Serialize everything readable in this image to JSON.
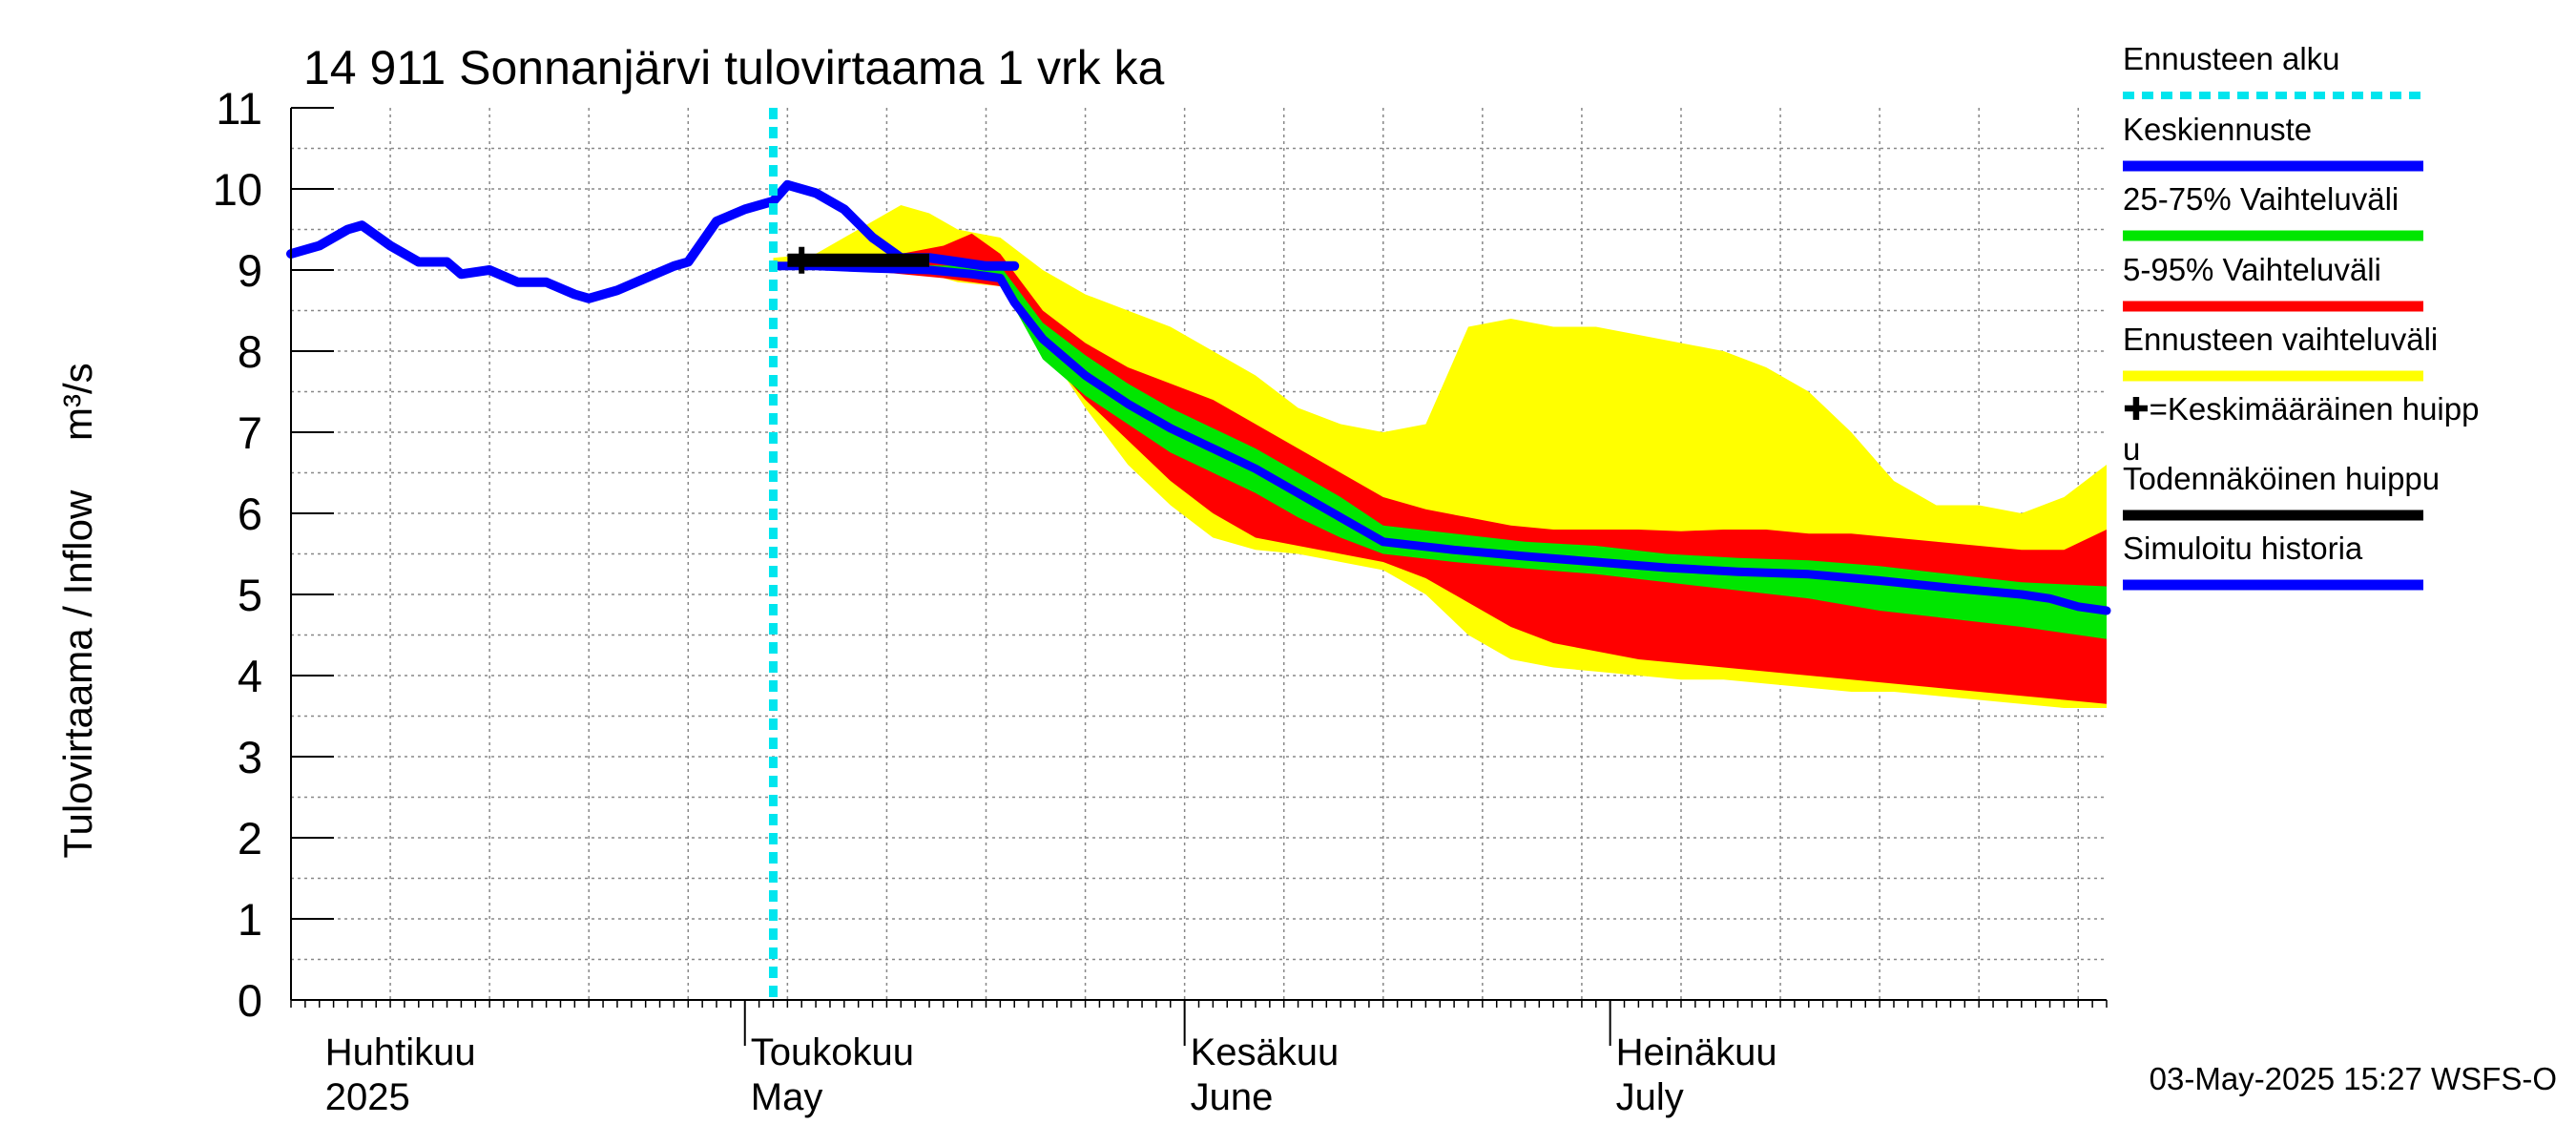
{
  "chart_data": {
    "type": "area",
    "title": "14 911 Sonnanjärvi tulovirtaama 1 vrk ka",
    "ylabel": "Tulovirtaama / Inflow",
    "yunit": "m³/s",
    "ylim": [
      0,
      11
    ],
    "yticks": [
      "0",
      "1",
      "2",
      "3",
      "4",
      "5",
      "6",
      "7",
      "8",
      "9",
      "10",
      "11"
    ],
    "xlim": [
      "2025-03-30",
      "2025-08-05"
    ],
    "grid": true,
    "forecast_start": "2025-05-03",
    "months": [
      {
        "fi": "Huhtikuu",
        "en": "2025",
        "date": "2025-04-01"
      },
      {
        "fi": "Toukokuu",
        "en": "May",
        "date": "2025-05-01"
      },
      {
        "fi": "Kesäkuu",
        "en": "June",
        "date": "2025-06-01"
      },
      {
        "fi": "Heinäkuu",
        "en": "July",
        "date": "2025-07-01"
      }
    ],
    "legend": [
      {
        "label": "Ennusteen alku",
        "color": "#00e5ee",
        "style": "dotted"
      },
      {
        "label": "Keskiennuste",
        "color": "#0000ff",
        "style": "solid"
      },
      {
        "label": "25-75% Vaihteluväli",
        "color": "#00e600",
        "style": "solid"
      },
      {
        "label": "5-95% Vaihteluväli",
        "color": "#ff0000",
        "style": "solid"
      },
      {
        "label": "Ennusteen vaihteluväli",
        "color": "#ffff00",
        "style": "solid"
      },
      {
        "label": "✚=Keskimääräinen huipp",
        "label2": "u",
        "color": "#000000",
        "style": "none"
      },
      {
        "label": "Todennäköinen huippu",
        "color": "#000000",
        "style": "solid"
      },
      {
        "label": "Simuloitu historia",
        "color": "#0000ff",
        "style": "solid"
      }
    ],
    "series": {
      "history": {
        "name": "Simuloitu historia",
        "color": "#0000ff",
        "points": [
          [
            "2025-03-30",
            9.2
          ],
          [
            "2025-04-01",
            9.3
          ],
          [
            "2025-04-03",
            9.5
          ],
          [
            "2025-04-04",
            9.55
          ],
          [
            "2025-04-06",
            9.3
          ],
          [
            "2025-04-08",
            9.1
          ],
          [
            "2025-04-10",
            9.1
          ],
          [
            "2025-04-11",
            8.95
          ],
          [
            "2025-04-13",
            9.0
          ],
          [
            "2025-04-15",
            8.85
          ],
          [
            "2025-04-17",
            8.85
          ],
          [
            "2025-04-19",
            8.7
          ],
          [
            "2025-04-20",
            8.65
          ],
          [
            "2025-04-22",
            8.75
          ],
          [
            "2025-04-24",
            8.9
          ],
          [
            "2025-04-26",
            9.05
          ],
          [
            "2025-04-27",
            9.1
          ],
          [
            "2025-04-29",
            9.6
          ],
          [
            "2025-05-01",
            9.75
          ],
          [
            "2025-05-03",
            9.85
          ],
          [
            "2025-05-04",
            10.05
          ],
          [
            "2025-05-06",
            9.95
          ],
          [
            "2025-05-08",
            9.75
          ],
          [
            "2025-05-10",
            9.4
          ],
          [
            "2025-05-12",
            9.15
          ],
          [
            "2025-05-14",
            9.15
          ],
          [
            "2025-05-16",
            9.1
          ],
          [
            "2025-05-18",
            9.05
          ],
          [
            "2025-05-20",
            9.05
          ]
        ]
      },
      "median": {
        "name": "Keskiennuste",
        "color": "#0000ff",
        "points": [
          [
            "2025-05-03",
            9.05
          ],
          [
            "2025-05-06",
            9.05
          ],
          [
            "2025-05-10",
            9.02
          ],
          [
            "2025-05-14",
            9.0
          ],
          [
            "2025-05-17",
            8.95
          ],
          [
            "2025-05-19",
            8.9
          ],
          [
            "2025-05-20",
            8.6
          ],
          [
            "2025-05-22",
            8.15
          ],
          [
            "2025-05-25",
            7.7
          ],
          [
            "2025-05-28",
            7.35
          ],
          [
            "2025-05-31",
            7.05
          ],
          [
            "2025-06-03",
            6.8
          ],
          [
            "2025-06-06",
            6.55
          ],
          [
            "2025-06-09",
            6.25
          ],
          [
            "2025-06-12",
            5.95
          ],
          [
            "2025-06-15",
            5.65
          ],
          [
            "2025-06-20",
            5.55
          ],
          [
            "2025-06-25",
            5.47
          ],
          [
            "2025-06-30",
            5.4
          ],
          [
            "2025-07-05",
            5.33
          ],
          [
            "2025-07-10",
            5.28
          ],
          [
            "2025-07-15",
            5.25
          ],
          [
            "2025-07-20",
            5.17
          ],
          [
            "2025-07-25",
            5.08
          ],
          [
            "2025-07-30",
            5.0
          ],
          [
            "2025-08-01",
            4.95
          ],
          [
            "2025-08-03",
            4.85
          ],
          [
            "2025-08-05",
            4.8
          ]
        ]
      },
      "peak": {
        "name": "Todennäköinen huippu",
        "color": "#000000",
        "points": [
          [
            "2025-05-04",
            9.12
          ],
          [
            "2025-05-14",
            9.12
          ]
        ]
      },
      "mean_peak_marker": {
        "date": "2025-05-05",
        "value": 9.12
      }
    },
    "bands": [
      {
        "name": "Ennusteen vaihteluväli",
        "color": "#ffff00",
        "x": [
          "2025-05-03",
          "2025-05-06",
          "2025-05-09",
          "2025-05-12",
          "2025-05-14",
          "2025-05-16",
          "2025-05-19",
          "2025-05-22",
          "2025-05-25",
          "2025-05-28",
          "2025-05-31",
          "2025-06-03",
          "2025-06-06",
          "2025-06-09",
          "2025-06-12",
          "2025-06-15",
          "2025-06-18",
          "2025-06-21",
          "2025-06-24",
          "2025-06-27",
          "2025-06-30",
          "2025-07-03",
          "2025-07-06",
          "2025-07-09",
          "2025-07-12",
          "2025-07-15",
          "2025-07-18",
          "2025-07-21",
          "2025-07-24",
          "2025-07-27",
          "2025-07-30",
          "2025-08-02",
          "2025-08-05"
        ],
        "upper": [
          9.15,
          9.2,
          9.5,
          9.8,
          9.7,
          9.5,
          9.4,
          9.0,
          8.7,
          8.5,
          8.3,
          8.0,
          7.7,
          7.3,
          7.1,
          7.0,
          7.1,
          8.3,
          8.4,
          8.3,
          8.3,
          8.2,
          8.1,
          8.0,
          7.8,
          7.5,
          7.0,
          6.4,
          6.1,
          6.1,
          6.0,
          6.2,
          6.6
        ],
        "lower": [
          9.0,
          9.0,
          9.0,
          9.0,
          8.95,
          8.85,
          8.8,
          8.1,
          7.3,
          6.6,
          6.1,
          5.7,
          5.55,
          5.5,
          5.4,
          5.3,
          5.0,
          4.5,
          4.2,
          4.1,
          4.05,
          4.0,
          3.95,
          3.95,
          3.9,
          3.85,
          3.8,
          3.8,
          3.75,
          3.7,
          3.65,
          3.6,
          3.6
        ]
      },
      {
        "name": "5-95% Vaihteluväli",
        "color": "#ff0000",
        "x": [
          "2025-05-03",
          "2025-05-06",
          "2025-05-09",
          "2025-05-12",
          "2025-05-15",
          "2025-05-17",
          "2025-05-19",
          "2025-05-22",
          "2025-05-25",
          "2025-05-28",
          "2025-05-31",
          "2025-06-03",
          "2025-06-06",
          "2025-06-09",
          "2025-06-12",
          "2025-06-15",
          "2025-06-18",
          "2025-06-21",
          "2025-06-24",
          "2025-06-27",
          "2025-06-30",
          "2025-07-03",
          "2025-07-06",
          "2025-07-09",
          "2025-07-12",
          "2025-07-15",
          "2025-07-18",
          "2025-07-21",
          "2025-07-24",
          "2025-07-27",
          "2025-07-30",
          "2025-08-02",
          "2025-08-05"
        ],
        "upper": [
          9.1,
          9.1,
          9.15,
          9.2,
          9.3,
          9.45,
          9.2,
          8.5,
          8.1,
          7.8,
          7.6,
          7.4,
          7.1,
          6.8,
          6.5,
          6.2,
          6.05,
          5.95,
          5.85,
          5.8,
          5.8,
          5.8,
          5.78,
          5.8,
          5.8,
          5.75,
          5.75,
          5.7,
          5.65,
          5.6,
          5.55,
          5.55,
          5.8
        ],
        "lower": [
          9.0,
          9.0,
          9.0,
          8.95,
          8.9,
          8.85,
          8.8,
          8.0,
          7.4,
          6.9,
          6.4,
          6.0,
          5.7,
          5.6,
          5.5,
          5.4,
          5.2,
          4.9,
          4.6,
          4.4,
          4.3,
          4.2,
          4.15,
          4.1,
          4.05,
          4.0,
          3.95,
          3.9,
          3.85,
          3.8,
          3.75,
          3.7,
          3.65
        ]
      },
      {
        "name": "25-75% Vaihteluväli",
        "color": "#00e600",
        "x": [
          "2025-05-03",
          "2025-05-08",
          "2025-05-13",
          "2025-05-17",
          "2025-05-19",
          "2025-05-22",
          "2025-05-25",
          "2025-05-28",
          "2025-05-31",
          "2025-06-03",
          "2025-06-06",
          "2025-06-09",
          "2025-06-12",
          "2025-06-15",
          "2025-06-20",
          "2025-06-25",
          "2025-06-30",
          "2025-07-05",
          "2025-07-10",
          "2025-07-15",
          "2025-07-20",
          "2025-07-25",
          "2025-07-30",
          "2025-08-05"
        ],
        "upper": [
          9.08,
          9.08,
          9.06,
          9.05,
          9.05,
          8.35,
          7.95,
          7.6,
          7.3,
          7.05,
          6.8,
          6.5,
          6.2,
          5.85,
          5.75,
          5.65,
          5.6,
          5.5,
          5.45,
          5.42,
          5.35,
          5.25,
          5.15,
          5.1
        ],
        "lower": [
          9.02,
          9.0,
          8.98,
          8.92,
          8.85,
          7.9,
          7.45,
          7.1,
          6.75,
          6.5,
          6.25,
          5.95,
          5.7,
          5.5,
          5.4,
          5.32,
          5.25,
          5.15,
          5.05,
          4.95,
          4.8,
          4.7,
          4.6,
          4.45
        ]
      }
    ],
    "footer": "03-May-2025 15:27 WSFS-O"
  }
}
